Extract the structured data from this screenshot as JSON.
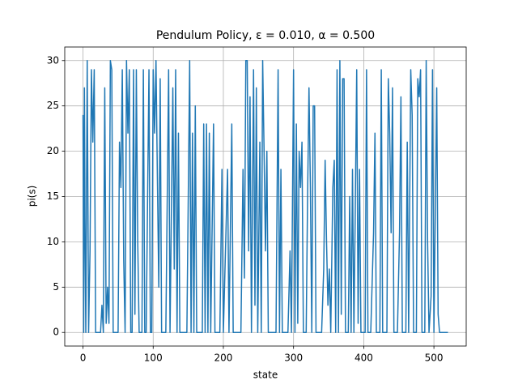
{
  "chart_data": {
    "type": "line",
    "title": "Pendulum Policy, ε = 0.010, α = 0.500",
    "xlabel": "state",
    "ylabel": "pi(s)",
    "color": "#1f77b4",
    "grid": true,
    "xlim": [
      -26,
      546
    ],
    "ylim": [
      -1.5,
      31.5
    ],
    "xticks": [
      0,
      100,
      200,
      300,
      400,
      500
    ],
    "yticks": [
      0,
      5,
      10,
      15,
      20,
      25,
      30
    ],
    "x": [
      0,
      1,
      2,
      3,
      4,
      6,
      8,
      10,
      12,
      14,
      16,
      18,
      22,
      25,
      27,
      29,
      31,
      33,
      35,
      37,
      39,
      41,
      43,
      50,
      52,
      54,
      56,
      58,
      60,
      62,
      64,
      66,
      68,
      70,
      72,
      74,
      76,
      78,
      80,
      84,
      86,
      88,
      90,
      94,
      96,
      98,
      100,
      102,
      104,
      106,
      108,
      110,
      112,
      118,
      122,
      124,
      128,
      130,
      132,
      134,
      136,
      138,
      148,
      152,
      154,
      156,
      158,
      160,
      162,
      170,
      172,
      174,
      176,
      178,
      180,
      182,
      186,
      188,
      195,
      198,
      200,
      206,
      208,
      212,
      214,
      225,
      228,
      230,
      232,
      234,
      236,
      238,
      240,
      243,
      245,
      247,
      249,
      252,
      254,
      256,
      258,
      260,
      262,
      264,
      275,
      278,
      280,
      282,
      284,
      292,
      295,
      297,
      300,
      302,
      304,
      306,
      308,
      310,
      312,
      314,
      318,
      320,
      322,
      324,
      326,
      328,
      330,
      332,
      340,
      343,
      345,
      347,
      349,
      351,
      353,
      356,
      358,
      360,
      362,
      364,
      366,
      368,
      370,
      372,
      374,
      378,
      380,
      382,
      384,
      386,
      388,
      390,
      392,
      394,
      396,
      402,
      404,
      406,
      410,
      414,
      416,
      418,
      423,
      425,
      427,
      433,
      435,
      437,
      439,
      441,
      443,
      448,
      451,
      453,
      455,
      460,
      462,
      464,
      467,
      469,
      471,
      475,
      477,
      479,
      481,
      483,
      487,
      489,
      491,
      493,
      496,
      498,
      500,
      504,
      506,
      508,
      512,
      520
    ],
    "values": [
      24,
      0,
      27,
      10,
      0,
      30,
      0,
      9,
      29,
      21,
      29,
      0,
      0,
      0,
      3,
      0,
      27,
      1,
      5,
      1,
      30,
      29,
      0,
      0,
      21,
      16,
      29,
      8,
      0,
      30,
      22,
      29,
      0,
      0,
      29,
      2,
      29,
      10,
      0,
      0,
      29,
      0,
      0,
      29,
      0,
      0,
      29,
      22,
      30,
      17,
      5,
      28,
      0,
      0,
      29,
      0,
      27,
      7,
      29,
      0,
      22,
      0,
      0,
      30,
      0,
      22,
      0,
      25,
      0,
      0,
      23,
      0,
      23,
      0,
      22,
      0,
      23,
      0,
      0,
      18,
      0,
      18,
      0,
      23,
      0,
      0,
      18,
      6,
      30,
      30,
      9,
      26,
      0,
      29,
      3,
      27,
      0,
      21,
      0,
      30,
      20,
      9,
      20,
      0,
      0,
      29,
      0,
      18,
      0,
      0,
      9,
      0,
      29,
      0,
      23,
      1,
      20,
      16,
      21,
      0,
      0,
      15,
      27,
      16,
      0,
      25,
      25,
      0,
      0,
      7,
      19,
      10,
      3,
      7,
      0,
      16,
      19,
      0,
      29,
      0,
      30,
      2,
      28,
      28,
      0,
      0,
      15,
      0,
      18,
      0,
      14,
      29,
      1,
      18,
      0,
      0,
      29,
      0,
      0,
      11,
      22,
      0,
      0,
      29,
      0,
      0,
      28,
      22,
      11,
      27,
      0,
      0,
      11,
      26,
      0,
      0,
      21,
      0,
      29,
      24,
      0,
      0,
      28,
      26,
      29,
      0,
      0,
      30,
      10,
      0,
      4,
      29,
      0,
      27,
      2,
      0,
      0,
      0
    ]
  }
}
